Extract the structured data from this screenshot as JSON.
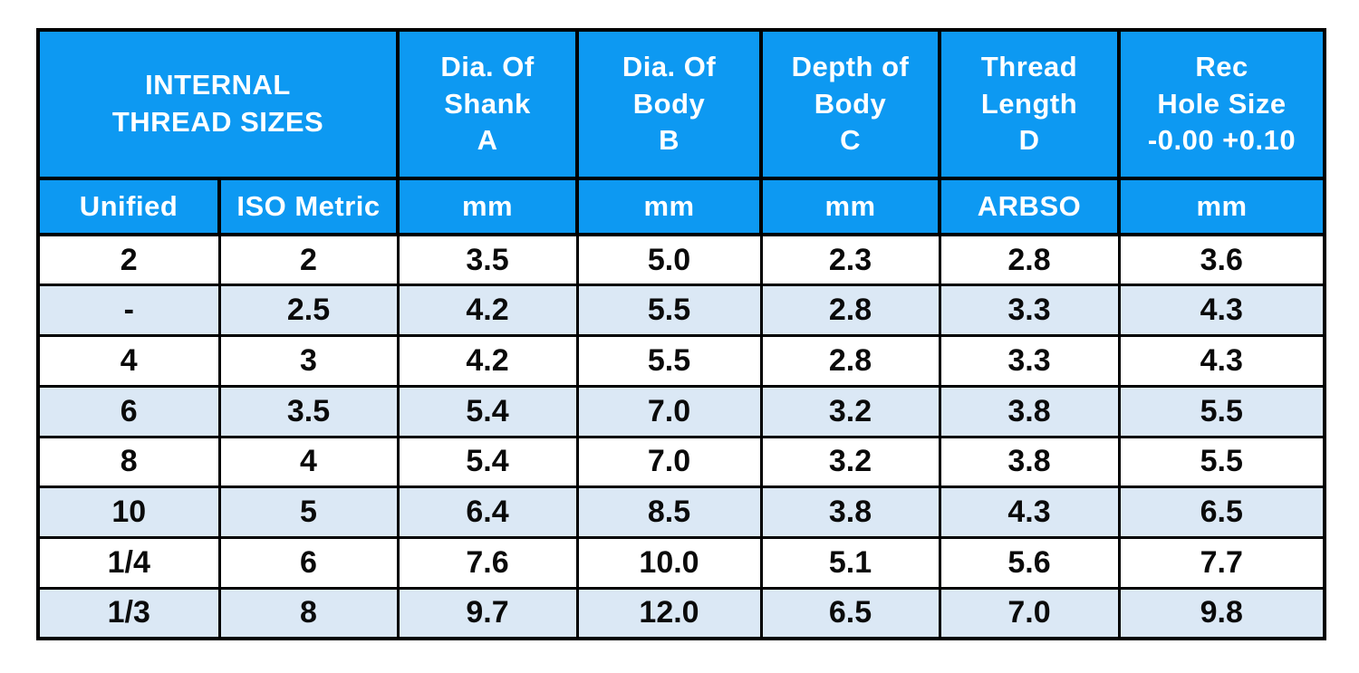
{
  "colors": {
    "header_bg": "#0d99f2",
    "header_text": "#ffffff",
    "row_bg": "#ffffff",
    "row_alt_bg": "#dbe8f5",
    "body_text": "#0a0a0a",
    "border": "#000000"
  },
  "chart_data": {
    "type": "table",
    "title": "INTERNAL THREAD SIZES",
    "column_groups": [
      {
        "text": "INTERNAL\nTHREAD SIZES",
        "span": 2
      },
      {
        "text": "Dia. Of\nShank\nA",
        "span": 1
      },
      {
        "text": "Dia. Of\nBody\nB",
        "span": 1
      },
      {
        "text": "Depth of\nBody\nC",
        "span": 1
      },
      {
        "text": "Thread\nLength\nD",
        "span": 1
      },
      {
        "text": "Rec\nHole Size\n-0.00 +0.10",
        "span": 1
      }
    ],
    "columns": [
      "Unified",
      "ISO Metric",
      "mm",
      "mm",
      "mm",
      "ARBSO",
      "mm"
    ],
    "rows": [
      [
        "2",
        "2",
        "3.5",
        "5.0",
        "2.3",
        "2.8",
        "3.6"
      ],
      [
        "-",
        "2.5",
        "4.2",
        "5.5",
        "2.8",
        "3.3",
        "4.3"
      ],
      [
        "4",
        "3",
        "4.2",
        "5.5",
        "2.8",
        "3.3",
        "4.3"
      ],
      [
        "6",
        "3.5",
        "5.4",
        "7.0",
        "3.2",
        "3.8",
        "5.5"
      ],
      [
        "8",
        "4",
        "5.4",
        "7.0",
        "3.2",
        "3.8",
        "5.5"
      ],
      [
        "10",
        "5",
        "6.4",
        "8.5",
        "3.8",
        "4.3",
        "6.5"
      ],
      [
        "1/4",
        "6",
        "7.6",
        "10.0",
        "5.1",
        "5.6",
        "7.7"
      ],
      [
        "1/3",
        "8",
        "9.7",
        "12.0",
        "6.5",
        "7.0",
        "9.8"
      ]
    ]
  }
}
